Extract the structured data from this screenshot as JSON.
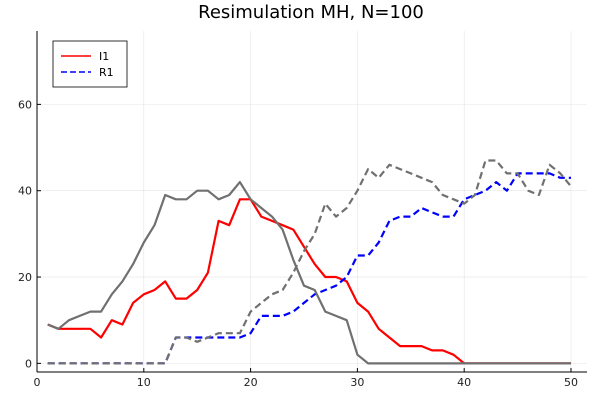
{
  "chart_data": {
    "type": "line",
    "title": "Resimulation MH, N=100",
    "xlabel": "",
    "ylabel": "",
    "xlim": [
      0,
      51.5
    ],
    "ylim": [
      -2,
      77
    ],
    "xticks": [
      0,
      10,
      20,
      30,
      40,
      50
    ],
    "yticks": [
      0,
      20,
      40,
      60
    ],
    "grid": true,
    "legend_position": "top-left",
    "x": [
      1,
      2,
      3,
      4,
      5,
      6,
      7,
      8,
      9,
      10,
      11,
      12,
      13,
      14,
      15,
      16,
      17,
      18,
      19,
      20,
      21,
      22,
      23,
      24,
      25,
      26,
      27,
      28,
      29,
      30,
      31,
      32,
      33,
      34,
      35,
      36,
      37,
      38,
      39,
      40,
      41,
      42,
      43,
      44,
      45,
      46,
      47,
      48,
      49,
      50
    ],
    "series": [
      {
        "name": "I1",
        "color": "#ff0000",
        "style": "solid",
        "values": [
          9,
          8,
          8,
          8,
          8,
          6,
          10,
          9,
          14,
          16,
          17,
          19,
          15,
          15,
          17,
          21,
          33,
          32,
          38,
          38,
          34,
          33,
          32,
          31,
          27,
          23,
          20,
          20,
          19,
          14,
          12,
          8,
          6,
          4,
          4,
          4,
          3,
          3,
          2,
          0,
          0,
          0,
          0,
          0,
          0,
          0,
          0,
          0,
          0,
          0
        ]
      },
      {
        "name": "R1",
        "color": "#0000ff",
        "style": "dashed",
        "values": [
          0,
          0,
          0,
          0,
          0,
          0,
          0,
          0,
          0,
          0,
          0,
          0,
          6,
          6,
          6,
          6,
          6,
          6,
          6,
          7,
          11,
          11,
          11,
          12,
          14,
          16,
          17,
          18,
          20,
          25,
          25,
          28,
          33,
          34,
          34,
          36,
          35,
          34,
          34,
          38,
          39,
          40,
          42,
          40,
          44,
          44,
          44,
          44,
          43,
          43
        ]
      },
      {
        "color": "#707070",
        "style": "solid",
        "values": [
          9,
          8,
          10,
          11,
          12,
          12,
          16,
          19,
          23,
          28,
          32,
          39,
          38,
          38,
          40,
          40,
          38,
          39,
          42,
          38,
          36,
          34,
          31,
          24,
          18,
          17,
          12,
          11,
          10,
          2,
          0,
          0,
          0,
          0,
          0,
          0,
          0,
          0,
          0,
          0,
          0,
          0,
          0,
          0,
          0,
          0,
          0,
          0,
          0,
          0
        ]
      },
      {
        "color": "#707070",
        "style": "dashed",
        "values": [
          0,
          0,
          0,
          0,
          0,
          0,
          0,
          0,
          0,
          0,
          0,
          0,
          6,
          6,
          5,
          6,
          7,
          7,
          7,
          12,
          14,
          16,
          17,
          21,
          26,
          30,
          37,
          34,
          36,
          40,
          45,
          43,
          46,
          45,
          44,
          43,
          42,
          39,
          38,
          37,
          39,
          47,
          47,
          44,
          44,
          40,
          39,
          46,
          44,
          41
        ]
      }
    ]
  }
}
